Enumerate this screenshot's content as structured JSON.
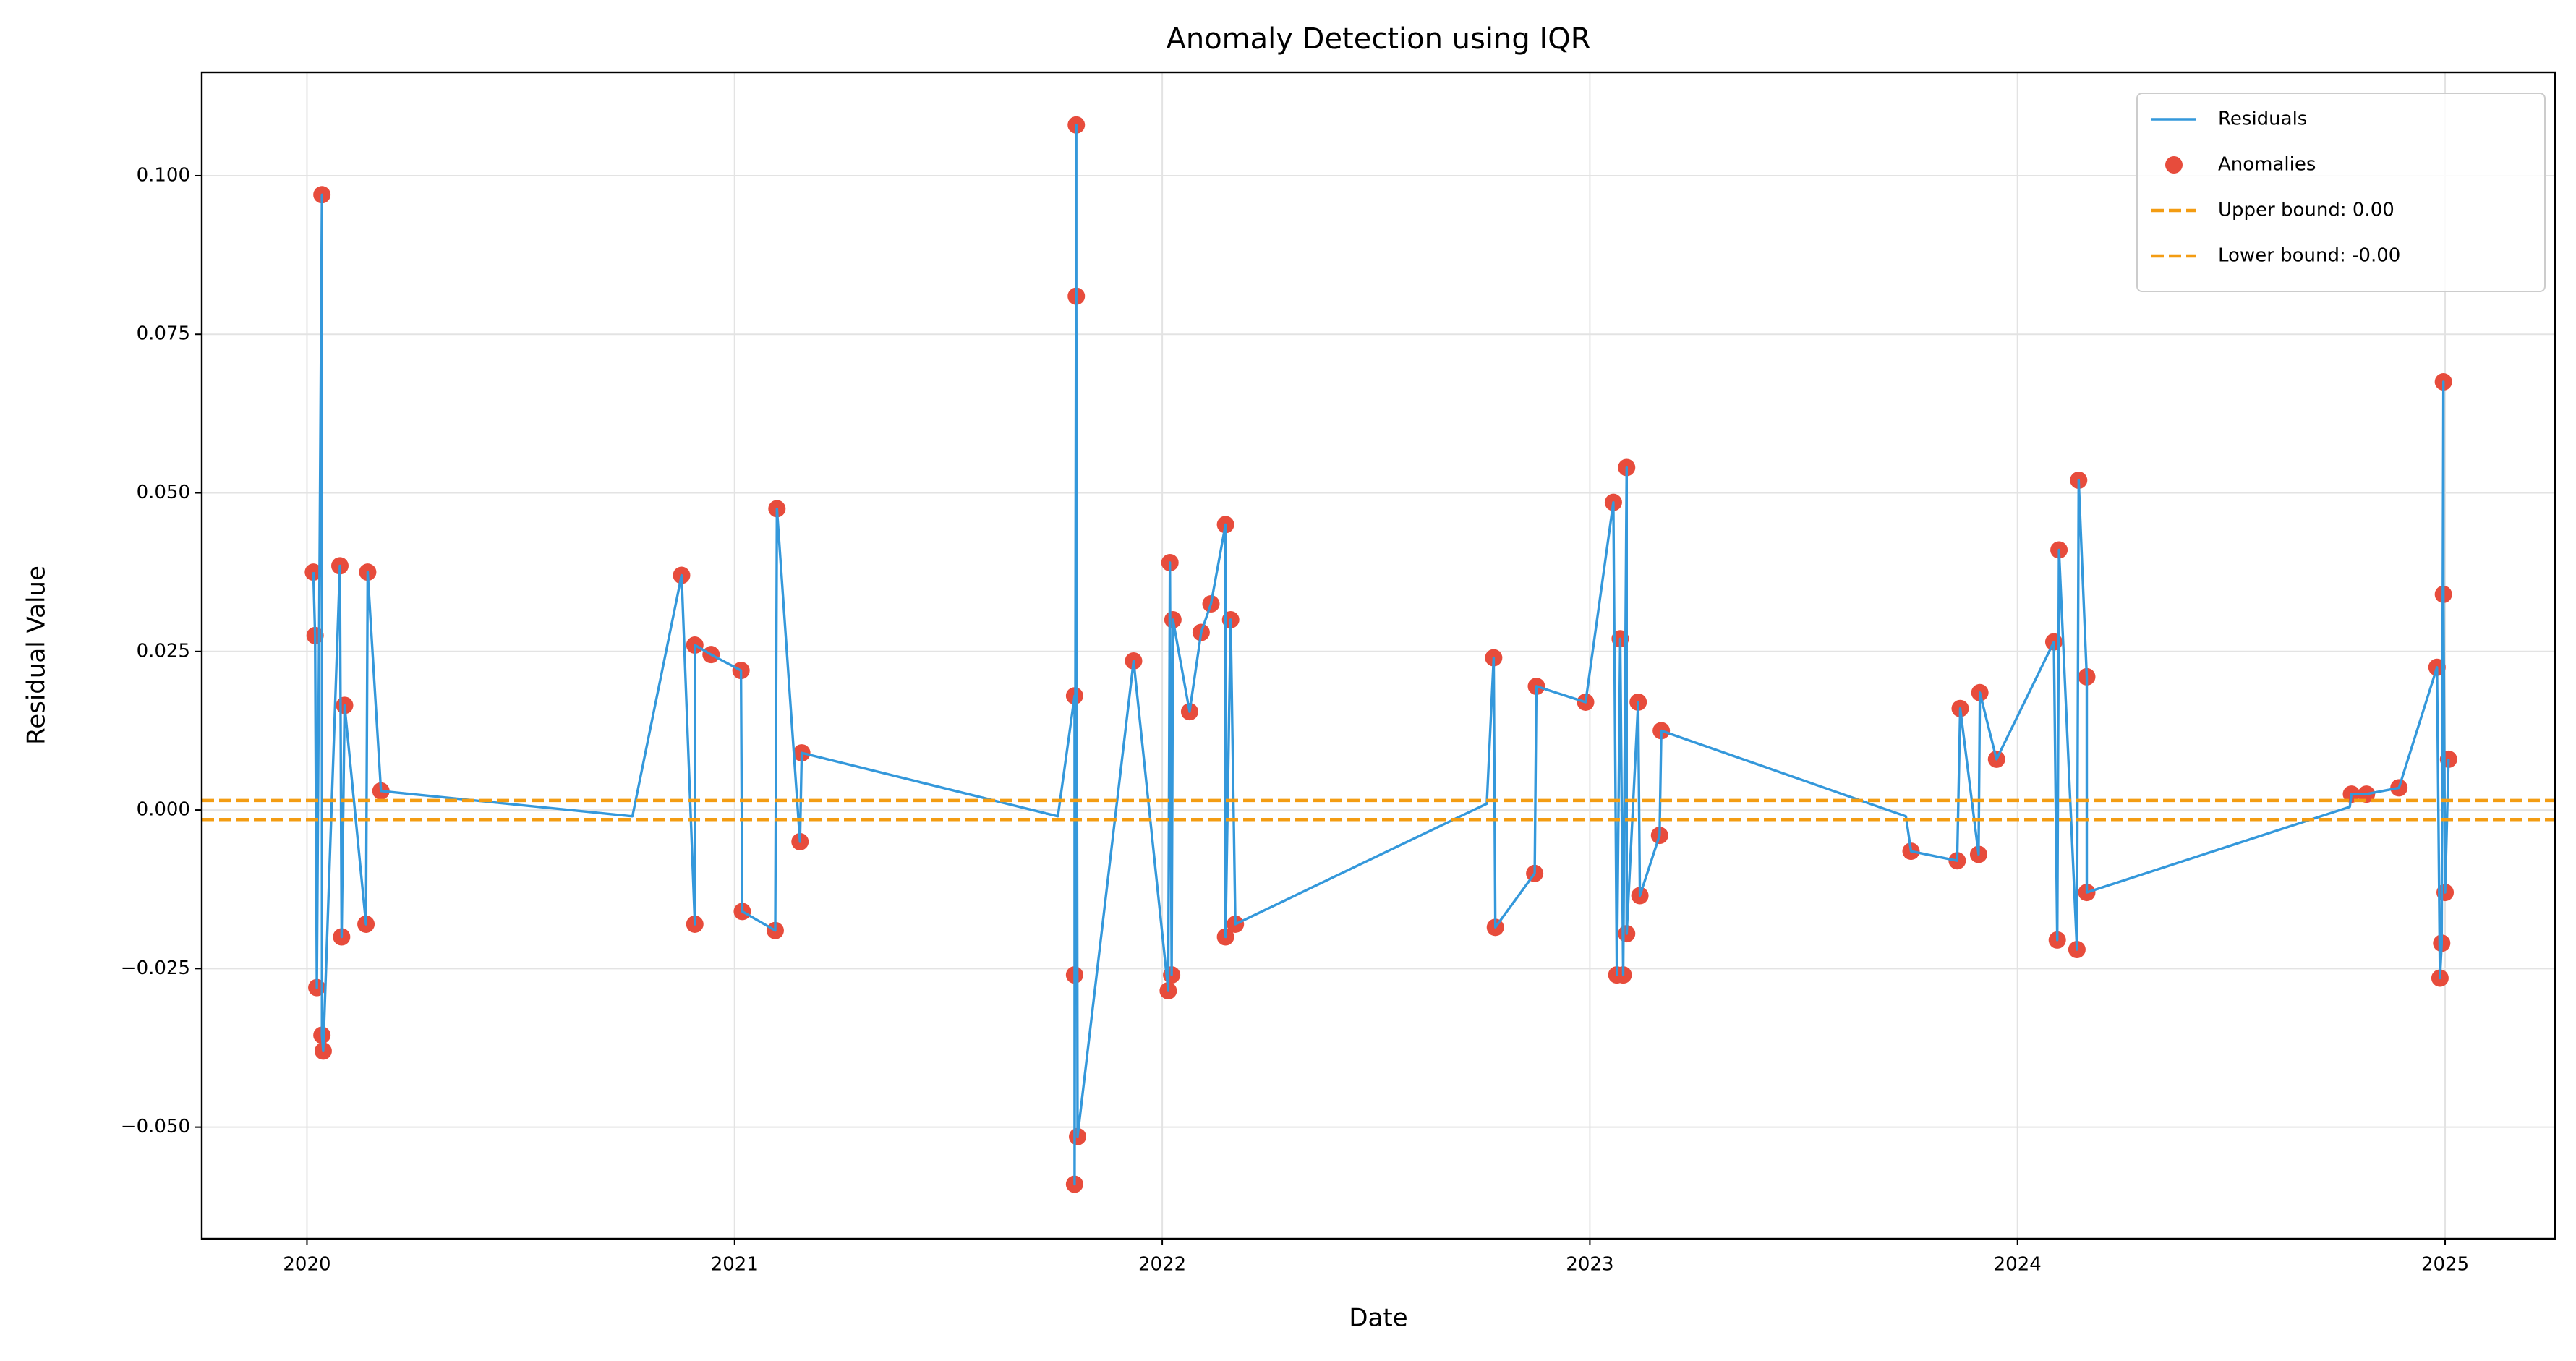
{
  "chart_data": {
    "type": "line",
    "title": "Anomaly Detection using IQR",
    "x_label": "Date",
    "y_label": "Residual Value",
    "xlim": [
      2019.754,
      2025.257
    ],
    "xticks": [
      2020,
      2021,
      2022,
      2023,
      2024,
      2025
    ],
    "ylim": [
      -0.0676,
      0.1163
    ],
    "yticks": [
      {
        "value": -0.05,
        "label": "−0.050"
      },
      {
        "value": -0.025,
        "label": "−0.025"
      },
      {
        "value": 0,
        "label": "0.000"
      },
      {
        "value": 0.025,
        "label": "0.025"
      },
      {
        "value": 0.05,
        "label": "0.050"
      },
      {
        "value": 0.075,
        "label": "0.075"
      },
      {
        "value": 0.1,
        "label": "0.100"
      }
    ],
    "grid": true,
    "legend": "upper right",
    "series": [
      {
        "name": "Residuals",
        "type": "line",
        "color": "#3498db",
        "x": [
          2020.015,
          2020.019,
          2020.023,
          2020.035,
          2020.035,
          2020.038,
          2020.077,
          2020.081,
          2020.088,
          2020.138,
          2020.142,
          2020.173,
          2020.761,
          2020.876,
          2020.907,
          2020.907,
          2020.945,
          2021.015,
          2021.018,
          2021.095,
          2021.099,
          2021.153,
          2021.157,
          2021.756,
          2021.795,
          2021.795,
          2021.795,
          2021.799,
          2021.799,
          2021.802,
          2021.933,
          2022.014,
          2022.018,
          2022.022,
          2022.025,
          2022.064,
          2022.091,
          2022.114,
          2022.148,
          2022.148,
          2022.16,
          2022.171,
          2022.759,
          2022.775,
          2022.779,
          2022.871,
          2022.875,
          2022.99,
          2023.055,
          2023.063,
          2023.071,
          2023.078,
          2023.086,
          2023.086,
          2023.113,
          2023.117,
          2023.163,
          2023.167,
          2023.739,
          2023.751,
          2023.859,
          2023.866,
          2023.909,
          2023.912,
          2023.951,
          2024.085,
          2024.093,
          2024.097,
          2024.139,
          2024.143,
          2024.162,
          2024.162,
          2024.777,
          2024.781,
          2024.816,
          2024.892,
          2024.981,
          2024.988,
          2024.992,
          2024.996,
          2024.996,
          2025.0,
          2025.008
        ],
        "values": [
          0.0375,
          0.0275,
          -0.028,
          0.097,
          -0.0355,
          -0.038,
          0.0385,
          -0.02,
          0.0165,
          -0.018,
          0.0375,
          0.003,
          -0.001,
          0.037,
          -0.018,
          0.026,
          0.0245,
          0.022,
          -0.016,
          -0.019,
          0.0475,
          -0.005,
          0.009,
          -0.001,
          0.018,
          -0.026,
          -0.059,
          0.108,
          0.081,
          -0.0515,
          0.0235,
          -0.0285,
          0.039,
          -0.026,
          0.03,
          0.0155,
          0.028,
          0.0325,
          0.045,
          -0.02,
          0.03,
          -0.018,
          0.001,
          0.024,
          -0.0185,
          -0.01,
          0.0195,
          0.017,
          0.0485,
          -0.026,
          0.027,
          -0.026,
          0.054,
          -0.0195,
          0.017,
          -0.0135,
          -0.004,
          0.0125,
          -0.001,
          -0.0065,
          -0.008,
          0.016,
          -0.007,
          0.0185,
          0.008,
          0.0265,
          -0.0205,
          0.041,
          -0.022,
          0.052,
          0.021,
          -0.013,
          0.0005,
          0.0025,
          0.0025,
          0.0035,
          0.0225,
          -0.0265,
          -0.021,
          0.0675,
          0.034,
          -0.013,
          0.008
        ]
      },
      {
        "name": "Anomalies",
        "type": "scatter",
        "color": "#e74c3c",
        "x": [
          2020.015,
          2020.019,
          2020.023,
          2020.035,
          2020.035,
          2020.038,
          2020.077,
          2020.081,
          2020.088,
          2020.138,
          2020.142,
          2020.173,
          2020.876,
          2020.907,
          2020.907,
          2020.945,
          2021.015,
          2021.018,
          2021.095,
          2021.099,
          2021.153,
          2021.157,
          2021.795,
          2021.795,
          2021.795,
          2021.799,
          2021.799,
          2021.802,
          2021.933,
          2022.014,
          2022.018,
          2022.022,
          2022.025,
          2022.064,
          2022.091,
          2022.114,
          2022.148,
          2022.148,
          2022.16,
          2022.171,
          2022.775,
          2022.779,
          2022.871,
          2022.875,
          2022.99,
          2023.055,
          2023.063,
          2023.071,
          2023.078,
          2023.086,
          2023.086,
          2023.113,
          2023.117,
          2023.163,
          2023.167,
          2023.751,
          2023.859,
          2023.866,
          2023.909,
          2023.912,
          2023.951,
          2024.085,
          2024.093,
          2024.097,
          2024.139,
          2024.143,
          2024.162,
          2024.162,
          2024.781,
          2024.816,
          2024.892,
          2024.981,
          2024.988,
          2024.992,
          2024.996,
          2024.996,
          2025.0,
          2025.008
        ],
        "values": [
          0.0375,
          0.0275,
          -0.028,
          0.097,
          -0.0355,
          -0.038,
          0.0385,
          -0.02,
          0.0165,
          -0.018,
          0.0375,
          0.003,
          0.037,
          -0.018,
          0.026,
          0.0245,
          0.022,
          -0.016,
          -0.019,
          0.0475,
          -0.005,
          0.009,
          0.018,
          -0.026,
          -0.059,
          0.108,
          0.081,
          -0.0515,
          0.0235,
          -0.0285,
          0.039,
          -0.026,
          0.03,
          0.0155,
          0.028,
          0.0325,
          0.045,
          -0.02,
          0.03,
          -0.018,
          0.024,
          -0.0185,
          -0.01,
          0.0195,
          0.017,
          0.0485,
          -0.026,
          0.027,
          -0.026,
          0.054,
          -0.0195,
          0.017,
          -0.0135,
          -0.004,
          0.0125,
          -0.0065,
          -0.008,
          0.016,
          -0.007,
          0.0185,
          0.008,
          0.0265,
          -0.0205,
          0.041,
          -0.022,
          0.052,
          0.021,
          -0.013,
          0.0025,
          0.0025,
          0.0035,
          0.0225,
          -0.0265,
          -0.021,
          0.0675,
          0.034,
          -0.013,
          0.008
        ]
      }
    ],
    "hlines": [
      {
        "name": "Upper bound: 0.00",
        "value": 0.0015,
        "color": "#f39c12"
      },
      {
        "name": "Lower bound: -0.00",
        "value": -0.0015,
        "color": "#f39c12"
      }
    ]
  }
}
